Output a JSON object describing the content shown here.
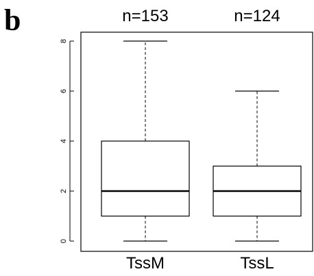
{
  "panel_label": "b",
  "chart_data": {
    "type": "boxplot",
    "categories": [
      "TssM",
      "TssL"
    ],
    "counts": [
      "n=153",
      "n=124"
    ],
    "y_ticks": [
      0,
      2,
      4,
      6,
      8
    ],
    "ylim": [
      0,
      8.3
    ],
    "boxes": [
      {
        "label": "TssM",
        "n_label": "n=153",
        "whisker_low": 0,
        "q1": 1,
        "median": 2,
        "q3": 4,
        "whisker_high": 8
      },
      {
        "label": "TssL",
        "n_label": "n=124",
        "whisker_low": 0,
        "q1": 1,
        "median": 2,
        "q3": 3,
        "whisker_high": 6
      }
    ],
    "grid": false,
    "title": "",
    "xlabel": "",
    "ylabel": ""
  }
}
